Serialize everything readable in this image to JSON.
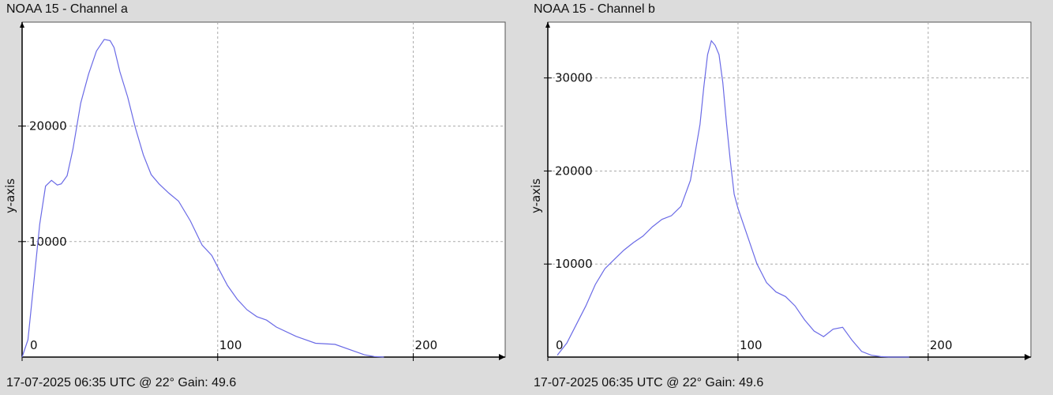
{
  "panels": [
    {
      "title": "NOAA 15 - Channel a",
      "footer": "17-07-2025 06:35 UTC @ 22° Gain: 49.6"
    },
    {
      "title": "NOAA 15 - Channel b",
      "footer": "17-07-2025 06:35 UTC @ 22° Gain: 49.6"
    }
  ],
  "colors": {
    "line": "#6a6ae6",
    "background": "#ffffff",
    "grid": "#aaaaaa",
    "axis": "#000000",
    "window": "#dcdcdc"
  },
  "chart_data": [
    {
      "type": "line",
      "title": "NOAA 15 - Channel a",
      "xlabel": "",
      "ylabel": "y-axis",
      "xlim": [
        0,
        247
      ],
      "ylim": [
        0,
        29000
      ],
      "x_ticks": [
        0,
        100,
        200
      ],
      "y_ticks": [
        10000,
        20000
      ],
      "grid": true,
      "series": [
        {
          "x": [
            0,
            3,
            6,
            9,
            12,
            15,
            18,
            20,
            23,
            26,
            30,
            34,
            38,
            42,
            45,
            47,
            50,
            54,
            58,
            62,
            66,
            70,
            75,
            80,
            86,
            92,
            97,
            100,
            105,
            110,
            115,
            120,
            125,
            130,
            140,
            150,
            160,
            170,
            175,
            180,
            185
          ],
          "y": [
            0,
            1500,
            6500,
            11500,
            14800,
            15300,
            14900,
            15000,
            15700,
            18000,
            22000,
            24500,
            26500,
            27500,
            27400,
            26800,
            24700,
            22500,
            19800,
            17500,
            15800,
            15000,
            14200,
            13500,
            11800,
            9700,
            8800,
            7800,
            6200,
            5000,
            4100,
            3500,
            3200,
            2600,
            1800,
            1200,
            1100,
            500,
            200,
            50,
            0
          ]
        }
      ]
    },
    {
      "type": "line",
      "title": "NOAA 15 - Channel b",
      "xlabel": "",
      "ylabel": "y-axis",
      "xlim": [
        0,
        254
      ],
      "ylim": [
        0,
        36000
      ],
      "x_ticks": [
        0,
        100,
        200
      ],
      "y_ticks": [
        10000,
        20000,
        30000
      ],
      "grid": true,
      "series": [
        {
          "x": [
            5,
            10,
            15,
            20,
            25,
            30,
            35,
            40,
            45,
            50,
            55,
            60,
            65,
            70,
            75,
            80,
            82,
            84,
            86,
            88,
            90,
            92,
            94,
            96,
            98,
            100,
            105,
            110,
            115,
            120,
            125,
            130,
            135,
            140,
            145,
            150,
            155,
            160,
            165,
            170,
            175,
            180,
            185,
            190
          ],
          "y": [
            200,
            1500,
            3500,
            5500,
            7800,
            9500,
            10500,
            11500,
            12300,
            13000,
            14000,
            14800,
            15200,
            16200,
            19000,
            25000,
            29000,
            32500,
            34000,
            33500,
            32500,
            29500,
            25000,
            21000,
            17500,
            16000,
            13000,
            10000,
            8000,
            7000,
            6500,
            5500,
            4000,
            2800,
            2200,
            3000,
            3200,
            1800,
            600,
            200,
            50,
            0,
            0,
            0
          ]
        }
      ]
    }
  ]
}
